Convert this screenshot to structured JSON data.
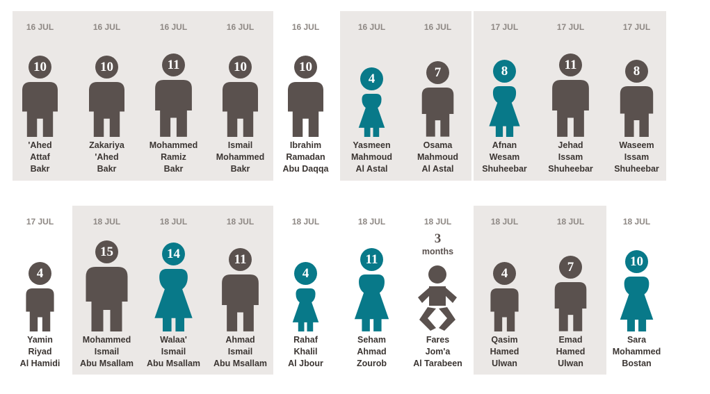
{
  "colors": {
    "male": "#5a514e",
    "female": "#087989",
    "panel": "#ebe8e6"
  },
  "rows": [
    {
      "people": [
        {
          "date": "16 JUL",
          "age": "10",
          "sex": "male",
          "name": [
            "'Ahed",
            "Attaf",
            "Bakr"
          ]
        },
        {
          "date": "16 JUL",
          "age": "10",
          "sex": "male",
          "name": [
            "Zakariya",
            "'Ahed",
            "Bakr"
          ]
        },
        {
          "date": "16 JUL",
          "age": "11",
          "sex": "male",
          "name": [
            "Mohammed",
            "Ramiz",
            "Bakr"
          ]
        },
        {
          "date": "16 JUL",
          "age": "10",
          "sex": "male",
          "name": [
            "Ismail",
            "Mohammed",
            "Bakr"
          ]
        },
        {
          "date": "16 JUL",
          "age": "10",
          "sex": "male",
          "name": [
            "Ibrahim",
            "Ramadan",
            "Abu Daqqa"
          ]
        },
        {
          "date": "16 JUL",
          "age": "4",
          "sex": "female",
          "name": [
            "Yasmeen",
            "Mahmoud",
            "Al Astal"
          ]
        },
        {
          "date": "16 JUL",
          "age": "7",
          "sex": "male",
          "name": [
            "Osama",
            "Mahmoud",
            "Al Astal"
          ]
        },
        {
          "date": "17 JUL",
          "age": "8",
          "sex": "female",
          "name": [
            "Afnan",
            "Wesam",
            "Shuheebar"
          ]
        },
        {
          "date": "17 JUL",
          "age": "11",
          "sex": "male",
          "name": [
            "Jehad",
            "Issam",
            "Shuheebar"
          ]
        },
        {
          "date": "17 JUL",
          "age": "8",
          "sex": "male",
          "name": [
            "Waseem",
            "Issam",
            "Shuheebar"
          ]
        }
      ]
    },
    {
      "people": [
        {
          "date": "17 JUL",
          "age": "4",
          "sex": "male",
          "name": [
            "Yamin",
            "Riyad",
            "Al Hamidi"
          ]
        },
        {
          "date": "18 JUL",
          "age": "15",
          "sex": "male",
          "name": [
            "Mohammed",
            "Ismail",
            "Abu Msallam"
          ]
        },
        {
          "date": "18 JUL",
          "age": "14",
          "sex": "female",
          "name": [
            "Walaa'",
            "Ismail",
            "Abu Msallam"
          ]
        },
        {
          "date": "18 JUL",
          "age": "11",
          "sex": "male",
          "name": [
            "Ahmad",
            "Ismail",
            "Abu Msallam"
          ]
        },
        {
          "date": "18 JUL",
          "age": "4",
          "sex": "female",
          "name": [
            "Rahaf",
            "Khalil",
            "Al Jbour"
          ]
        },
        {
          "date": "18 JUL",
          "age": "11",
          "sex": "female",
          "name": [
            "Seham",
            "Ahmad",
            "Zourob"
          ]
        },
        {
          "date": "18 JUL",
          "age": "3",
          "age_unit": "months",
          "sex": "baby",
          "name": [
            "Fares",
            "Jom'a",
            "Al Tarabeen"
          ]
        },
        {
          "date": "18 JUL",
          "age": "4",
          "sex": "male",
          "name": [
            "Qasim",
            "Hamed",
            "Ulwan"
          ]
        },
        {
          "date": "18 JUL",
          "age": "7",
          "sex": "male",
          "name": [
            "Emad",
            "Hamed",
            "Ulwan"
          ]
        },
        {
          "date": "18 JUL",
          "age": "10",
          "sex": "female",
          "name": [
            "Sara",
            "Mohammed",
            "Bostan"
          ]
        }
      ]
    }
  ]
}
